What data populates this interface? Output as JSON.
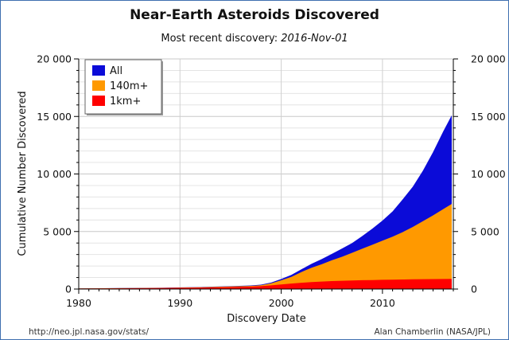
{
  "chart_data": {
    "type": "area",
    "title": "Near-Earth Asteroids Discovered",
    "subtitle_prefix": "Most recent discovery: ",
    "subtitle_date": "2016-Nov-01",
    "xlabel": "Discovery Date",
    "ylabel": "Cumulative Number Discovered",
    "xlim": [
      1980,
      2017
    ],
    "ylim": [
      0,
      20000
    ],
    "x_ticks": [
      "1980",
      "1990",
      "2000",
      "2010"
    ],
    "y_ticks_left": [
      "0",
      "5 000",
      "10 000",
      "15 000",
      "20 000"
    ],
    "y_ticks_right": [
      "0",
      "5 000",
      "10 000",
      "15 000",
      "20 000"
    ],
    "grid": true,
    "legend_position": "top-left",
    "x": [
      1980,
      1984,
      1988,
      1992,
      1995,
      1997,
      1998,
      1999,
      2000,
      2001,
      2002,
      2003,
      2004,
      2005,
      2006,
      2007,
      2008,
      2009,
      2010,
      2011,
      2012,
      2013,
      2014,
      2015,
      2016,
      2016.84
    ],
    "series": [
      {
        "name": "All",
        "color": "#0b0bd8",
        "values": [
          50,
          80,
          110,
          170,
          250,
          310,
          380,
          560,
          870,
          1230,
          1720,
          2200,
          2600,
          3050,
          3520,
          4000,
          4600,
          5250,
          5950,
          6750,
          7800,
          8900,
          10300,
          11900,
          13700,
          15100
        ]
      },
      {
        "name": "140m+",
        "color": "#ff9900",
        "values": [
          45,
          75,
          100,
          150,
          220,
          270,
          330,
          490,
          760,
          1050,
          1480,
          1850,
          2150,
          2500,
          2800,
          3150,
          3500,
          3850,
          4200,
          4550,
          4950,
          5400,
          5900,
          6400,
          6950,
          7400
        ]
      },
      {
        "name": "1km+",
        "color": "#ff0000",
        "values": [
          40,
          60,
          85,
          120,
          170,
          210,
          250,
          320,
          400,
          480,
          550,
          610,
          650,
          690,
          720,
          745,
          765,
          785,
          800,
          815,
          830,
          845,
          855,
          865,
          875,
          885
        ]
      }
    ]
  },
  "footer": {
    "left": "http://neo.jpl.nasa.gov/stats/",
    "right": "Alan Chamberlin (NASA/JPL)"
  }
}
